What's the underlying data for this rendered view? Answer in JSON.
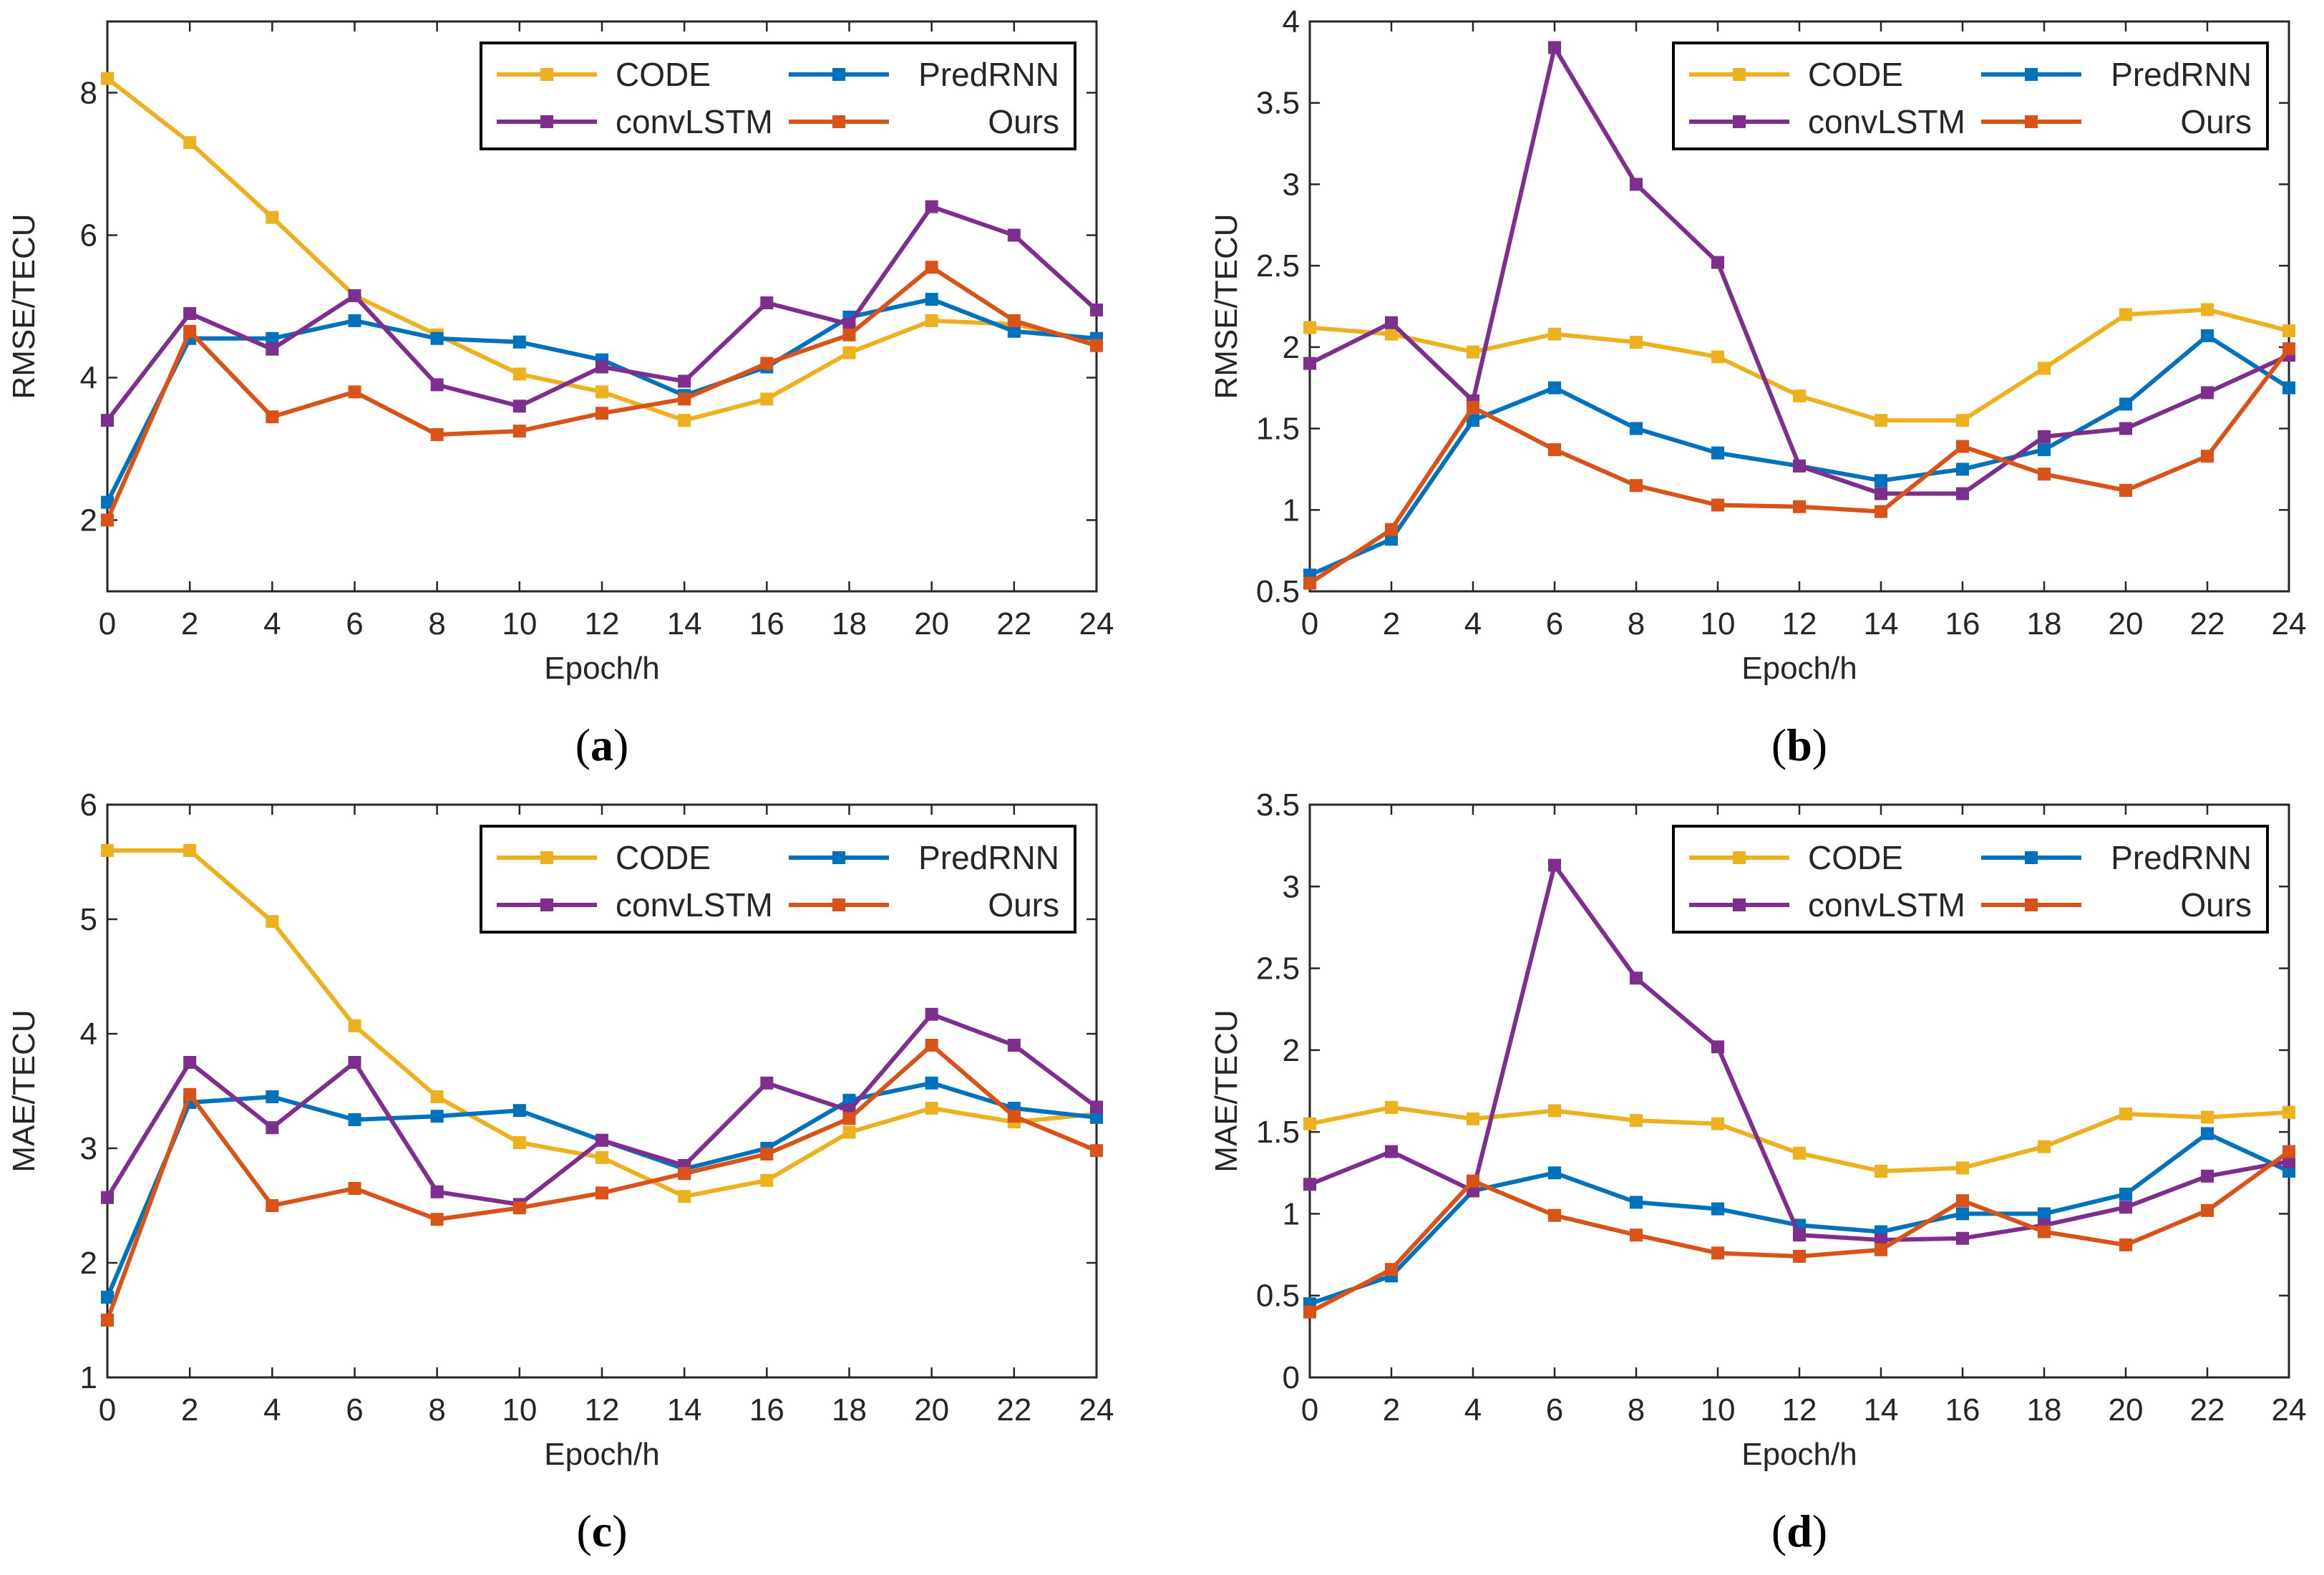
{
  "figure": {
    "series_colors": {
      "CODE": "#EDB120",
      "PredRNN": "#0072BD",
      "convLSTM": "#7E2F8E",
      "Ours": "#D95319"
    },
    "axis_color": "#262626"
  },
  "chart_data": [
    {
      "id": "a",
      "type": "line",
      "panel_label": "(a)",
      "panel_letter": "a",
      "xlabel": "Epoch/h",
      "ylabel": "RMSE/TECU",
      "xlim": [
        0,
        24
      ],
      "ylim": [
        1,
        9
      ],
      "xticks": [
        0,
        2,
        4,
        6,
        8,
        10,
        12,
        14,
        16,
        18,
        20,
        22,
        24
      ],
      "yticks": [
        2,
        4,
        6,
        8
      ],
      "ytick_labels": [
        "2",
        "4",
        "6",
        "8"
      ],
      "legend_position": "top-right",
      "x": [
        0,
        2,
        4,
        6,
        8,
        10,
        12,
        14,
        16,
        18,
        20,
        22,
        24
      ],
      "series": [
        {
          "name": "CODE",
          "values": [
            8.2,
            7.3,
            6.25,
            5.15,
            4.6,
            4.05,
            3.8,
            3.4,
            3.7,
            4.35,
            4.8,
            4.75,
            4.5
          ]
        },
        {
          "name": "PredRNN",
          "values": [
            2.25,
            4.55,
            4.55,
            4.8,
            4.55,
            4.5,
            4.25,
            3.75,
            4.15,
            4.85,
            5.1,
            4.65,
            4.55
          ]
        },
        {
          "name": "convLSTM",
          "values": [
            3.4,
            4.9,
            4.4,
            5.15,
            3.9,
            3.6,
            4.15,
            3.95,
            5.05,
            4.75,
            6.4,
            6.0,
            4.95
          ]
        },
        {
          "name": "Ours",
          "values": [
            2.0,
            4.65,
            3.45,
            3.8,
            3.2,
            3.25,
            3.5,
            3.7,
            4.2,
            4.6,
            5.55,
            4.8,
            4.45
          ]
        }
      ]
    },
    {
      "id": "b",
      "type": "line",
      "panel_label": "(b)",
      "panel_letter": "b",
      "xlabel": "Epoch/h",
      "ylabel": "RMSE/TECU",
      "xlim": [
        0,
        24
      ],
      "ylim": [
        0.5,
        4
      ],
      "xticks": [
        0,
        2,
        4,
        6,
        8,
        10,
        12,
        14,
        16,
        18,
        20,
        22,
        24
      ],
      "yticks": [
        0.5,
        1,
        1.5,
        2,
        2.5,
        3,
        3.5,
        4
      ],
      "ytick_labels": [
        "0.5",
        "1",
        "1.5",
        "2",
        "2.5",
        "3",
        "3.5",
        "4"
      ],
      "legend_position": "top-right",
      "x": [
        0,
        2,
        4,
        6,
        8,
        10,
        12,
        14,
        16,
        18,
        20,
        22,
        24
      ],
      "series": [
        {
          "name": "CODE",
          "values": [
            2.12,
            2.08,
            1.97,
            2.08,
            2.03,
            1.94,
            1.7,
            1.55,
            1.55,
            1.87,
            2.2,
            2.23,
            2.1
          ]
        },
        {
          "name": "PredRNN",
          "values": [
            0.6,
            0.82,
            1.55,
            1.75,
            1.5,
            1.35,
            1.27,
            1.18,
            1.25,
            1.37,
            1.65,
            2.07,
            1.75
          ]
        },
        {
          "name": "convLSTM",
          "values": [
            1.9,
            2.15,
            1.67,
            3.84,
            3.0,
            2.52,
            1.27,
            1.1,
            1.1,
            1.45,
            1.5,
            1.72,
            1.95
          ]
        },
        {
          "name": "Ours",
          "values": [
            0.55,
            0.88,
            1.63,
            1.37,
            1.15,
            1.03,
            1.02,
            0.99,
            1.39,
            1.22,
            1.12,
            1.33,
            1.99
          ]
        }
      ]
    },
    {
      "id": "c",
      "type": "line",
      "panel_label": "(c)",
      "panel_letter": "c",
      "xlabel": "Epoch/h",
      "ylabel": "MAE/TECU",
      "xlim": [
        0,
        24
      ],
      "ylim": [
        1,
        6
      ],
      "xticks": [
        0,
        2,
        4,
        6,
        8,
        10,
        12,
        14,
        16,
        18,
        20,
        22,
        24
      ],
      "yticks": [
        1,
        2,
        3,
        4,
        5,
        6
      ],
      "ytick_labels": [
        "1",
        "2",
        "3",
        "4",
        "5",
        "6"
      ],
      "legend_position": "top-right",
      "x": [
        0,
        2,
        4,
        6,
        8,
        10,
        12,
        14,
        16,
        18,
        20,
        22,
        24
      ],
      "series": [
        {
          "name": "CODE",
          "values": [
            5.6,
            5.6,
            4.98,
            4.07,
            3.45,
            3.05,
            2.92,
            2.58,
            2.72,
            3.14,
            3.35,
            3.23,
            3.3
          ]
        },
        {
          "name": "PredRNN",
          "values": [
            1.7,
            3.4,
            3.45,
            3.25,
            3.28,
            3.33,
            3.07,
            2.82,
            3.0,
            3.42,
            3.57,
            3.35,
            3.27
          ]
        },
        {
          "name": "convLSTM",
          "values": [
            2.57,
            3.75,
            3.18,
            3.75,
            2.62,
            2.51,
            3.07,
            2.85,
            3.57,
            3.33,
            4.17,
            3.9,
            3.36
          ]
        },
        {
          "name": "Ours",
          "values": [
            1.5,
            3.47,
            2.5,
            2.65,
            2.38,
            2.48,
            2.61,
            2.78,
            2.95,
            3.26,
            3.9,
            3.28,
            2.98
          ]
        }
      ]
    },
    {
      "id": "d",
      "type": "line",
      "panel_label": "(d)",
      "panel_letter": "d",
      "xlabel": "Epoch/h",
      "ylabel": "MAE/TECU",
      "xlim": [
        0,
        24
      ],
      "ylim": [
        0,
        3.5
      ],
      "xticks": [
        0,
        2,
        4,
        6,
        8,
        10,
        12,
        14,
        16,
        18,
        20,
        22,
        24
      ],
      "yticks": [
        0,
        0.5,
        1,
        1.5,
        2,
        2.5,
        3,
        3.5
      ],
      "ytick_labels": [
        "0",
        "0.5",
        "1",
        "1.5",
        "2",
        "2.5",
        "3",
        "3.5"
      ],
      "legend_position": "top-right",
      "x": [
        0,
        2,
        4,
        6,
        8,
        10,
        12,
        14,
        16,
        18,
        20,
        22,
        24
      ],
      "series": [
        {
          "name": "CODE",
          "values": [
            1.55,
            1.65,
            1.58,
            1.63,
            1.57,
            1.55,
            1.37,
            1.26,
            1.28,
            1.41,
            1.61,
            1.59,
            1.62
          ]
        },
        {
          "name": "PredRNN",
          "values": [
            0.45,
            0.62,
            1.14,
            1.25,
            1.07,
            1.03,
            0.93,
            0.89,
            1.0,
            1.0,
            1.12,
            1.49,
            1.26
          ]
        },
        {
          "name": "convLSTM",
          "values": [
            1.18,
            1.38,
            1.14,
            3.13,
            2.44,
            2.02,
            0.87,
            0.84,
            0.85,
            0.93,
            1.04,
            1.23,
            1.32
          ]
        },
        {
          "name": "Ours",
          "values": [
            0.4,
            0.66,
            1.2,
            0.99,
            0.87,
            0.76,
            0.74,
            0.78,
            1.08,
            0.89,
            0.81,
            1.02,
            1.38
          ]
        }
      ]
    }
  ]
}
